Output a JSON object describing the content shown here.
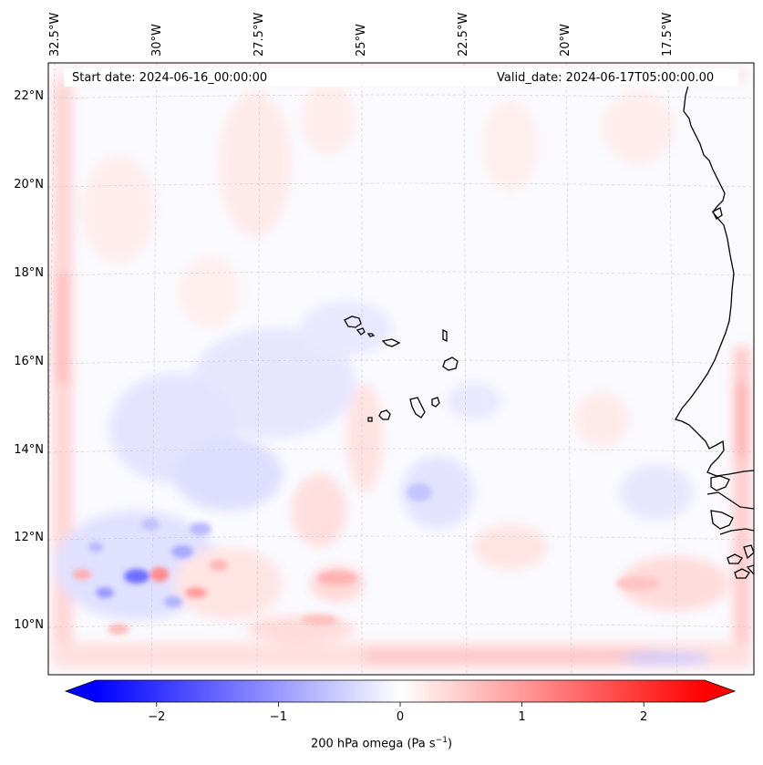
{
  "header": {
    "start_date": "Start date: 2024-06-16_00:00:00",
    "valid_date": "Valid_date: 2024-06-17T05:00:00.00"
  },
  "longitude_labels": [
    "32.5°W",
    "30°W",
    "27.5°W",
    "25°W",
    "22.5°W",
    "20°W",
    "17.5°W"
  ],
  "latitude_labels": [
    "22°N",
    "20°N",
    "18°N",
    "16°N",
    "14°N",
    "12°N",
    "10°N"
  ],
  "colorbar": {
    "label_main": "200 hPa omega (Pa s",
    "label_exp": "−1",
    "label_close": ")",
    "ticks": [
      "−2",
      "−1",
      "0",
      "1",
      "2"
    ],
    "tick_values": [
      -2,
      -1,
      0,
      1,
      2
    ],
    "range": [
      -2.5,
      2.5
    ],
    "colormap": "bwr",
    "low_color": "#0000ff",
    "mid_color": "#ffffff",
    "high_color": "#ff0000"
  },
  "map_extent": {
    "lon": [
      -33.0,
      -15.5
    ],
    "lat": [
      8.9,
      22.8
    ]
  },
  "background_color": "#fafaff",
  "coastline_color": "#000000",
  "gridlines": "dashed, light gray"
}
